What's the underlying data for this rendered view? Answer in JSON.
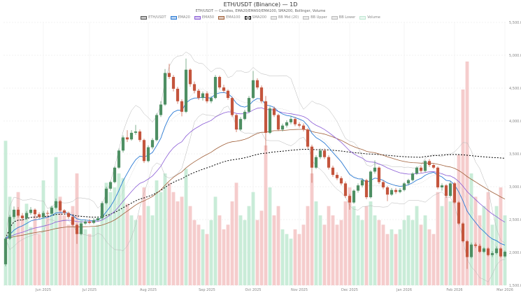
{
  "chart_data": {
    "type": "candlestick",
    "title": "ETH/USDT (Binance) — 1D",
    "subtitle": "ETH/USDT — Candles, EMA20/EMA50/EMA100, SMA200, Bollinger, Volume",
    "legend": [
      {
        "label": "ETH/USDT",
        "color": "#555555"
      },
      {
        "label": "EMA20",
        "color": "#2a7ad5"
      },
      {
        "label": "EMA50",
        "color": "#8a5cd6"
      },
      {
        "label": "EMA100",
        "color": "#a0603a"
      },
      {
        "label": "SMA200",
        "color": "#000000"
      },
      {
        "label": "BB Mid (20)",
        "color": "#bbbbbb"
      },
      {
        "label": "BB Upper",
        "color": "#bbbbbb"
      },
      {
        "label": "BB Lower",
        "color": "#bbbbbb"
      },
      {
        "label": "Volume",
        "color": "#bfe8d2"
      }
    ],
    "legend_position": "top-center",
    "ylim": [
      1500,
      5500
    ],
    "yticks": [
      "5,500.0",
      "5,000.0",
      "4,500.0",
      "4,000.0",
      "3,500.0",
      "3,000.0",
      "2,500.0",
      "2,000.0",
      "1,500.0"
    ],
    "ytick_values": [
      5500,
      5000,
      4500,
      4000,
      3500,
      3000,
      2500,
      2000,
      1500
    ],
    "xticks": [
      "Jun 2025",
      "Jul 2025",
      "Aug 2025",
      "Sep 2025",
      "Oct 2025",
      "Nov 2025",
      "Dec 2025",
      "Jan 2026",
      "Feb 2026",
      "Mar 2026"
    ],
    "xtick_candle_index": [
      9,
      20,
      34,
      48,
      59,
      70,
      82,
      95,
      107,
      119
    ],
    "grid": true,
    "colors": {
      "up": "#4e8f63",
      "down": "#c4553d",
      "vol_up": "#c9ecd8",
      "vol_down": "#f5cccc",
      "ema20": "#2a7ad5",
      "ema50": "#8a5cd6",
      "ema100": "#a0603a",
      "sma200": "#000000",
      "bb": "#b5b5b5"
    },
    "ohlc": [
      [
        1820,
        2230,
        1790,
        2210
      ],
      [
        2210,
        2570,
        2190,
        2540
      ],
      [
        2540,
        2700,
        2510,
        2650
      ],
      [
        2650,
        2690,
        2530,
        2560
      ],
      [
        2560,
        2600,
        2480,
        2520
      ],
      [
        2520,
        2630,
        2500,
        2600
      ],
      [
        2600,
        2690,
        2570,
        2650
      ],
      [
        2650,
        2670,
        2550,
        2580
      ],
      [
        2580,
        2610,
        2510,
        2540
      ],
      [
        2540,
        2630,
        2520,
        2600
      ],
      [
        2600,
        2640,
        2560,
        2590
      ],
      [
        2590,
        2710,
        2570,
        2680
      ],
      [
        2680,
        2820,
        2660,
        2780
      ],
      [
        2780,
        2800,
        2620,
        2640
      ],
      [
        2640,
        2660,
        2570,
        2600
      ],
      [
        2600,
        2620,
        2510,
        2540
      ],
      [
        2540,
        2560,
        2400,
        2420
      ],
      [
        2420,
        2440,
        2130,
        2280
      ],
      [
        2280,
        2460,
        2260,
        2440
      ],
      [
        2440,
        2500,
        2420,
        2470
      ],
      [
        2470,
        2510,
        2430,
        2450
      ],
      [
        2450,
        2520,
        2430,
        2490
      ],
      [
        2490,
        2550,
        2470,
        2520
      ],
      [
        2520,
        2780,
        2500,
        2750
      ],
      [
        2750,
        3000,
        2730,
        2970
      ],
      [
        2970,
        3090,
        2940,
        3070
      ],
      [
        3070,
        3310,
        3050,
        3290
      ],
      [
        3290,
        3580,
        3270,
        3550
      ],
      [
        3550,
        3780,
        3520,
        3750
      ],
      [
        3750,
        3860,
        3680,
        3720
      ],
      [
        3720,
        3860,
        3700,
        3820
      ],
      [
        3820,
        3940,
        3790,
        3840
      ],
      [
        3840,
        3870,
        3680,
        3710
      ],
      [
        3710,
        3730,
        3360,
        3390
      ],
      [
        3390,
        3630,
        3370,
        3600
      ],
      [
        3600,
        3740,
        3570,
        3710
      ],
      [
        3710,
        4120,
        3690,
        4090
      ],
      [
        4090,
        4300,
        4060,
        4250
      ],
      [
        4250,
        4790,
        4230,
        4730
      ],
      [
        4730,
        4870,
        4640,
        4670
      ],
      [
        4670,
        4700,
        4450,
        4490
      ],
      [
        4490,
        4520,
        4260,
        4300
      ],
      [
        4300,
        4330,
        4070,
        4140
      ],
      [
        4140,
        4950,
        4120,
        4780
      ],
      [
        4780,
        4800,
        4520,
        4560
      ],
      [
        4560,
        4600,
        4420,
        4460
      ],
      [
        4460,
        4490,
        4320,
        4350
      ],
      [
        4350,
        4450,
        4310,
        4420
      ],
      [
        4420,
        4450,
        4270,
        4300
      ],
      [
        4300,
        4380,
        4270,
        4350
      ],
      [
        4350,
        4700,
        4330,
        4670
      ],
      [
        4670,
        4690,
        4480,
        4510
      ],
      [
        4510,
        4550,
        4430,
        4460
      ],
      [
        4460,
        4480,
        4320,
        4350
      ],
      [
        4350,
        4370,
        4060,
        4090
      ],
      [
        4090,
        4110,
        3830,
        3870
      ],
      [
        3870,
        4060,
        3850,
        4030
      ],
      [
        4030,
        4170,
        4010,
        4140
      ],
      [
        4140,
        4380,
        4120,
        4350
      ],
      [
        4350,
        4760,
        4330,
        4620
      ],
      [
        4620,
        4650,
        4480,
        4510
      ],
      [
        4510,
        4540,
        4270,
        4300
      ],
      [
        4300,
        4380,
        3550,
        3820
      ],
      [
        3820,
        4220,
        3800,
        4190
      ],
      [
        4190,
        4220,
        4060,
        4090
      ],
      [
        4090,
        4110,
        3850,
        3870
      ],
      [
        3870,
        3960,
        3840,
        3930
      ],
      [
        3930,
        4010,
        3900,
        3980
      ],
      [
        3980,
        4080,
        3950,
        4030
      ],
      [
        4030,
        4060,
        3920,
        3950
      ],
      [
        3950,
        3980,
        3900,
        3930
      ],
      [
        3930,
        3960,
        3840,
        3870
      ],
      [
        3870,
        3890,
        3580,
        3610
      ],
      [
        3610,
        3640,
        3060,
        3290
      ],
      [
        3290,
        3480,
        3270,
        3450
      ],
      [
        3450,
        3580,
        3420,
        3550
      ],
      [
        3550,
        3580,
        3420,
        3450
      ],
      [
        3450,
        3480,
        3260,
        3290
      ],
      [
        3290,
        3320,
        3150,
        3180
      ],
      [
        3180,
        3220,
        3100,
        3130
      ],
      [
        3130,
        3160,
        3020,
        3050
      ],
      [
        3050,
        3080,
        2830,
        2860
      ],
      [
        2860,
        2890,
        2650,
        2760
      ],
      [
        2760,
        2960,
        2740,
        2940
      ],
      [
        2940,
        3050,
        2910,
        3020
      ],
      [
        3020,
        3130,
        2990,
        3100
      ],
      [
        3100,
        3120,
        2810,
        2840
      ],
      [
        2840,
        3250,
        2820,
        3230
      ],
      [
        3230,
        3400,
        3200,
        3290
      ],
      [
        3290,
        3310,
        3040,
        3070
      ],
      [
        3070,
        3100,
        2960,
        2990
      ],
      [
        2990,
        3010,
        2780,
        2880
      ],
      [
        2880,
        2980,
        2860,
        2950
      ],
      [
        2950,
        2980,
        2890,
        2920
      ],
      [
        2920,
        2980,
        2900,
        2950
      ],
      [
        2950,
        3070,
        2930,
        3050
      ],
      [
        3050,
        3120,
        3020,
        3100
      ],
      [
        3100,
        3220,
        3080,
        3200
      ],
      [
        3200,
        3310,
        3180,
        3290
      ],
      [
        3290,
        3320,
        3210,
        3240
      ],
      [
        3240,
        3410,
        3220,
        3390
      ],
      [
        3390,
        3420,
        3300,
        3330
      ],
      [
        3330,
        3350,
        3270,
        3290
      ],
      [
        3290,
        3310,
        2960,
        2990
      ],
      [
        2990,
        3050,
        2940,
        3020
      ],
      [
        3020,
        3040,
        2830,
        2860
      ],
      [
        2860,
        3080,
        2840,
        3050
      ],
      [
        3050,
        3070,
        2740,
        2760
      ],
      [
        2760,
        2780,
        2420,
        2440
      ],
      [
        2440,
        2460,
        2150,
        2170
      ],
      [
        2170,
        2190,
        1750,
        1930
      ],
      [
        1930,
        2150,
        1910,
        2120
      ],
      [
        2120,
        2150,
        2070,
        2100
      ],
      [
        2100,
        2130,
        1990,
        2010
      ],
      [
        2010,
        2080,
        1990,
        2060
      ],
      [
        2060,
        2080,
        1940,
        1960
      ],
      [
        1960,
        2020,
        1930,
        1990
      ],
      [
        1990,
        2090,
        1970,
        2060
      ],
      [
        2060,
        2080,
        1920,
        1940
      ],
      [
        1940,
        2030,
        1920,
        2010
      ]
    ],
    "volume": [
      62,
      38,
      30,
      40,
      28,
      35,
      25,
      30,
      22,
      45,
      30,
      34,
      55,
      38,
      30,
      26,
      34,
      48,
      28,
      24,
      22,
      25,
      26,
      32,
      44,
      40,
      42,
      48,
      46,
      35,
      30,
      28,
      30,
      42,
      34,
      30,
      45,
      40,
      48,
      44,
      40,
      36,
      38,
      50,
      34,
      28,
      26,
      24,
      22,
      28,
      38,
      30,
      24,
      26,
      36,
      44,
      30,
      28,
      34,
      40,
      28,
      32,
      60,
      42,
      30,
      34,
      24,
      22,
      20,
      24,
      22,
      26,
      34,
      48,
      36,
      30,
      26,
      34,
      30,
      26,
      28,
      36,
      42,
      34,
      30,
      28,
      34,
      36,
      30,
      28,
      26,
      22,
      24,
      22,
      24,
      28,
      30,
      28,
      34,
      26,
      30,
      24,
      22,
      40,
      34,
      38,
      36,
      44,
      56,
      84,
      96,
      48,
      38,
      30,
      34,
      40,
      26,
      34,
      42,
      30
    ]
  }
}
